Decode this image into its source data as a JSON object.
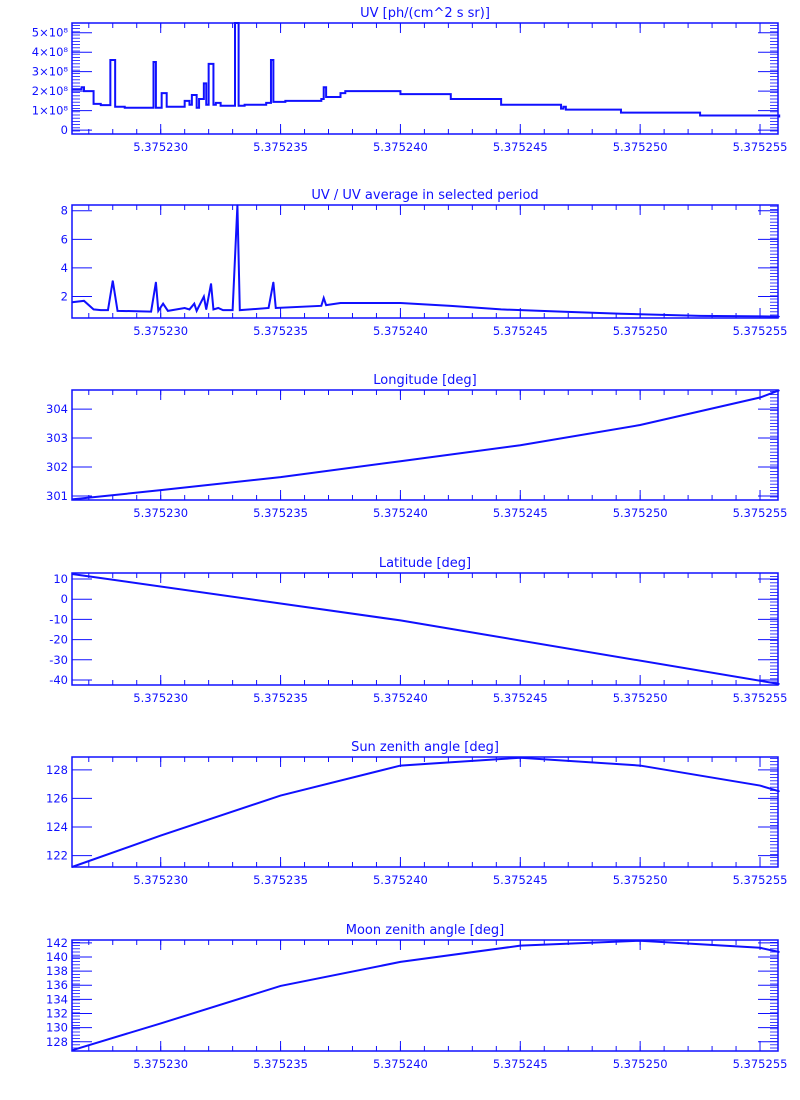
{
  "color": "#1010ff",
  "chart_data": [
    {
      "type": "line",
      "step": true,
      "title": "UV [ph/(cm^2 s sr)]",
      "xlim": [
        5.3752263,
        5.37525575
      ],
      "ylim": [
        -20000000,
        550000000
      ],
      "xticks": [
        5.37523,
        5.375235,
        5.37524,
        5.375245,
        5.37525,
        5.375255
      ],
      "xtick_labels": [
        "5.375230",
        "5.375235",
        "5.375240",
        "5.375245",
        "5.375250",
        "5.375255"
      ],
      "yticks": [
        0,
        100000000,
        200000000,
        300000000,
        400000000,
        500000000
      ],
      "ytick_labels": [
        "0",
        "1×10⁸",
        "2×10⁸",
        "3×10⁸",
        "4×10⁸",
        "5×10⁸"
      ],
      "points": [
        [
          5.3752263,
          210000000
        ],
        [
          5.3752267,
          220000000
        ],
        [
          5.3752268,
          200000000
        ],
        [
          5.3752272,
          135000000
        ],
        [
          5.3752275,
          128000000
        ],
        [
          5.3752279,
          360000000
        ],
        [
          5.3752281,
          120000000
        ],
        [
          5.3752285,
          115000000
        ],
        [
          5.3752297,
          350000000
        ],
        [
          5.3752298,
          115000000
        ],
        [
          5.37523004,
          190000000
        ],
        [
          5.37523025,
          120000000
        ],
        [
          5.375231,
          150000000
        ],
        [
          5.3752312,
          130000000
        ],
        [
          5.3752313,
          180000000
        ],
        [
          5.3752315,
          115000000
        ],
        [
          5.3752316,
          160000000
        ],
        [
          5.3752318,
          240000000
        ],
        [
          5.3752319,
          130000000
        ],
        [
          5.375232,
          340000000
        ],
        [
          5.3752322,
          130000000
        ],
        [
          5.3752323,
          140000000
        ],
        [
          5.3752325,
          125000000
        ],
        [
          5.3752331,
          550000000
        ],
        [
          5.37523325,
          125000000
        ],
        [
          5.3752335,
          130000000
        ],
        [
          5.3752344,
          140000000
        ],
        [
          5.3752346,
          360000000
        ],
        [
          5.3752347,
          145000000
        ],
        [
          5.3752352,
          150000000
        ],
        [
          5.3752367,
          160000000
        ],
        [
          5.3752368,
          220000000
        ],
        [
          5.3752369,
          170000000
        ],
        [
          5.3752375,
          190000000
        ],
        [
          5.3752377,
          200000000
        ],
        [
          5.37524,
          185000000
        ],
        [
          5.3752421,
          160000000
        ],
        [
          5.3752442,
          130000000
        ],
        [
          5.3752467,
          110000000
        ],
        [
          5.3752468,
          120000000
        ],
        [
          5.3752469,
          105000000
        ],
        [
          5.3752492,
          90000000
        ],
        [
          5.3752525,
          75000000
        ],
        [
          5.3752558,
          70000000
        ]
      ]
    },
    {
      "type": "line",
      "title": "UV / UV average in selected period",
      "xlim": [
        5.3752263,
        5.37525575
      ],
      "ylim": [
        0.5,
        8.4
      ],
      "xticks": [
        5.37523,
        5.375235,
        5.37524,
        5.375245,
        5.37525,
        5.375255
      ],
      "xtick_labels": [
        "5.375230",
        "5.375235",
        "5.375240",
        "5.375245",
        "5.375250",
        "5.375255"
      ],
      "yticks": [
        2,
        4,
        6,
        8
      ],
      "ytick_labels": [
        "2",
        "4",
        "6",
        "8"
      ],
      "points": [
        [
          5.3752263,
          1.6
        ],
        [
          5.3752268,
          1.7
        ],
        [
          5.3752272,
          1.1
        ],
        [
          5.3752275,
          1.05
        ],
        [
          5.3752278,
          1.05
        ],
        [
          5.375228,
          3.1
        ],
        [
          5.3752282,
          1.0
        ],
        [
          5.3752296,
          0.95
        ],
        [
          5.3752298,
          3.0
        ],
        [
          5.3752299,
          1.0
        ],
        [
          5.3752301,
          1.5
        ],
        [
          5.3752303,
          1.0
        ],
        [
          5.375231,
          1.2
        ],
        [
          5.3752312,
          1.1
        ],
        [
          5.3752314,
          1.5
        ],
        [
          5.3752315,
          1.0
        ],
        [
          5.3752318,
          2.0
        ],
        [
          5.3752319,
          1.1
        ],
        [
          5.3752321,
          2.9
        ],
        [
          5.3752322,
          1.1
        ],
        [
          5.3752324,
          1.2
        ],
        [
          5.3752326,
          1.05
        ],
        [
          5.375233,
          1.05
        ],
        [
          5.3752332,
          8.4
        ],
        [
          5.3752333,
          1.05
        ],
        [
          5.3752345,
          1.2
        ],
        [
          5.3752347,
          3.0
        ],
        [
          5.3752348,
          1.2
        ],
        [
          5.3752367,
          1.35
        ],
        [
          5.3752368,
          1.9
        ],
        [
          5.3752369,
          1.4
        ],
        [
          5.3752375,
          1.55
        ],
        [
          5.37524,
          1.55
        ],
        [
          5.3752421,
          1.35
        ],
        [
          5.3752442,
          1.1
        ],
        [
          5.3752467,
          0.95
        ],
        [
          5.3752492,
          0.8
        ],
        [
          5.3752525,
          0.65
        ],
        [
          5.3752558,
          0.6
        ]
      ]
    },
    {
      "type": "line",
      "title": "Longitude [deg]",
      "xlim": [
        5.3752263,
        5.37525575
      ],
      "ylim": [
        300.86,
        304.66
      ],
      "xticks": [
        5.37523,
        5.375235,
        5.37524,
        5.375245,
        5.37525,
        5.375255
      ],
      "xtick_labels": [
        "5.375230",
        "5.375235",
        "5.375240",
        "5.375245",
        "5.375250",
        "5.375255"
      ],
      "yticks": [
        301,
        302,
        303,
        304
      ],
      "ytick_labels": [
        "301",
        "302",
        "303",
        "304"
      ],
      "points": [
        [
          5.3752263,
          300.88
        ],
        [
          5.37523,
          301.2
        ],
        [
          5.375235,
          301.65
        ],
        [
          5.37524,
          302.2
        ],
        [
          5.375245,
          302.75
        ],
        [
          5.37525,
          303.45
        ],
        [
          5.375255,
          304.4
        ],
        [
          5.3752558,
          304.65
        ]
      ]
    },
    {
      "type": "line",
      "title": "Latitude [deg]",
      "xlim": [
        5.3752263,
        5.37525575
      ],
      "ylim": [
        -42.5,
        13
      ],
      "xticks": [
        5.37523,
        5.375235,
        5.37524,
        5.375245,
        5.37525,
        5.375255
      ],
      "xtick_labels": [
        "5.375230",
        "5.375235",
        "5.375240",
        "5.375245",
        "5.375250",
        "5.375255"
      ],
      "yticks": [
        10,
        0,
        -10,
        -20,
        -30,
        -40
      ],
      "ytick_labels": [
        "10",
        "0",
        "-10",
        "-20",
        "-30",
        "-40"
      ],
      "points": [
        [
          5.3752263,
          12.5
        ],
        [
          5.37524,
          -10.5
        ],
        [
          5.3752558,
          -42
        ]
      ]
    },
    {
      "type": "line",
      "title": "Sun zenith angle [deg]",
      "xlim": [
        5.3752263,
        5.37525575
      ],
      "ylim": [
        121.2,
        128.9
      ],
      "xticks": [
        5.37523,
        5.375235,
        5.37524,
        5.375245,
        5.37525,
        5.375255
      ],
      "xtick_labels": [
        "5.375230",
        "5.375235",
        "5.375240",
        "5.375245",
        "5.375250",
        "5.375255"
      ],
      "yticks": [
        122,
        124,
        126,
        128
      ],
      "ytick_labels": [
        "122",
        "124",
        "126",
        "128"
      ],
      "points": [
        [
          5.3752263,
          121.2
        ],
        [
          5.37523,
          123.4
        ],
        [
          5.375235,
          126.2
        ],
        [
          5.37524,
          128.3
        ],
        [
          5.375245,
          128.85
        ],
        [
          5.37525,
          128.3
        ],
        [
          5.375255,
          126.9
        ],
        [
          5.3752558,
          126.5
        ]
      ]
    },
    {
      "type": "line",
      "title": "Moon zenith angle [deg]",
      "xlim": [
        5.3752263,
        5.37525575
      ],
      "ylim": [
        126.7,
        142.4
      ],
      "xticks": [
        5.37523,
        5.375235,
        5.37524,
        5.375245,
        5.37525,
        5.375255
      ],
      "xtick_labels": [
        "5.375230",
        "5.375235",
        "5.375240",
        "5.375245",
        "5.375250",
        "5.375255"
      ],
      "yticks": [
        128,
        130,
        132,
        134,
        136,
        138,
        140,
        142
      ],
      "ytick_labels": [
        "128",
        "130",
        "132",
        "134",
        "136",
        "138",
        "140",
        "142"
      ],
      "points": [
        [
          5.3752263,
          126.8
        ],
        [
          5.37523,
          130.6
        ],
        [
          5.375235,
          135.9
        ],
        [
          5.37524,
          139.3
        ],
        [
          5.375245,
          141.6
        ],
        [
          5.37525,
          142.3
        ],
        [
          5.375255,
          141.3
        ],
        [
          5.3752558,
          140.7
        ]
      ]
    }
  ]
}
